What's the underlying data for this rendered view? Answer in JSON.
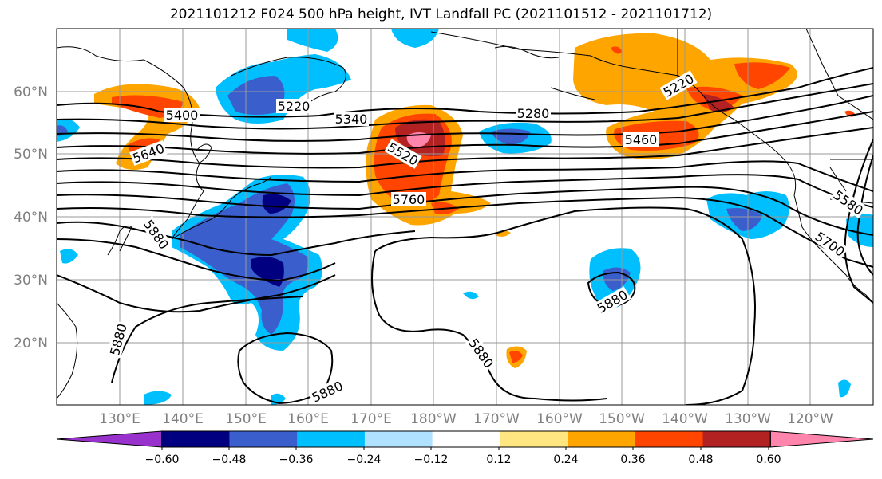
{
  "title": "2021101212 F024 500 hPa height, IVT Landfall PC (2021101512 - 2021101712)",
  "lat_labels": [
    "60°N",
    "50°N",
    "40°N",
    "30°N",
    "20°N"
  ],
  "lon_labels": [
    "130°E",
    "140°E",
    "150°E",
    "160°E",
    "170°E",
    "180°W",
    "170°W",
    "160°W",
    "150°W",
    "140°W",
    "130°W",
    "120°W"
  ],
  "contour_labels": [
    "5400",
    "5220",
    "5340",
    "5280",
    "5220",
    "5640",
    "5520",
    "5460",
    "5760",
    "5580",
    "5880",
    "5700",
    "5880",
    "5880",
    "5880",
    "5880"
  ],
  "colorbar": {
    "tick_labels": [
      "−0.60",
      "−0.48",
      "−0.36",
      "−0.24",
      "−0.12",
      "0.12",
      "0.24",
      "0.36",
      "0.48",
      "0.60"
    ],
    "colors": [
      "#9932CC",
      "#000080",
      "#3A5FCD",
      "#00BFFF",
      "#B0E2FF",
      "#FFFFFF",
      "#FFE680",
      "#FFA500",
      "#FF4500",
      "#B22222",
      "#FF85AD"
    ]
  },
  "palette": {
    "pink": "#FF85AD",
    "darkred": "#B22222",
    "redorange": "#FF4500",
    "orange": "#FFA500",
    "yellow": "#FFE680",
    "lightblue": "#B0E2FF",
    "skyblue": "#00BFFF",
    "royalblue": "#3A5FCD",
    "navy": "#000080"
  }
}
